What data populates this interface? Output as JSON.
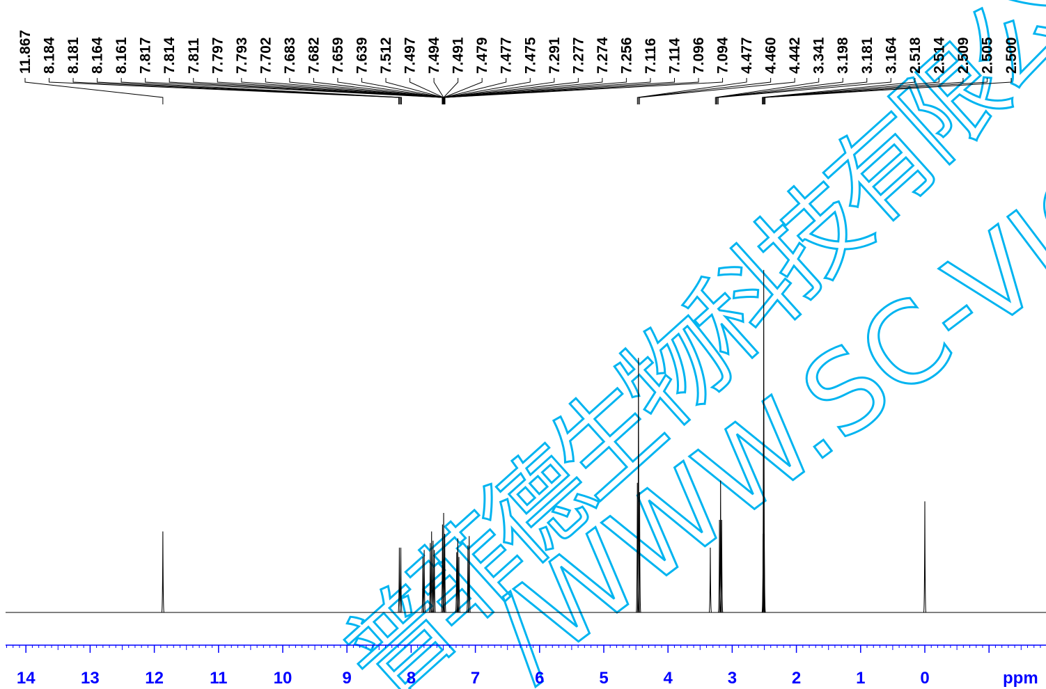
{
  "chart_data": {
    "type": "line",
    "title": "",
    "xlabel": "ppm",
    "ylabel": "",
    "x_reversed": true,
    "xlim": [
      14.3,
      -1.9
    ],
    "ylim": [
      0,
      1
    ],
    "grid": false,
    "ticks": [
      14,
      13,
      12,
      11,
      10,
      9,
      8,
      7,
      6,
      5,
      4,
      3,
      2,
      1,
      0
    ],
    "minor_tick_step": 0.1,
    "peak_labels": [
      "11.867",
      "8.184",
      "8.181",
      "8.164",
      "8.161",
      "7.817",
      "7.814",
      "7.811",
      "7.797",
      "7.793",
      "7.702",
      "7.683",
      "7.682",
      "7.659",
      "7.639",
      "7.512",
      "7.497",
      "7.494",
      "7.491",
      "7.479",
      "7.477",
      "7.475",
      "7.291",
      "7.277",
      "7.274",
      "7.256",
      "7.116",
      "7.114",
      "7.096",
      "7.094",
      "4.477",
      "4.460",
      "4.442",
      "3.341",
      "3.198",
      "3.181",
      "3.164",
      "2.518",
      "2.514",
      "2.509",
      "2.505",
      "2.500"
    ],
    "label_groups": [
      {
        "center": 11.867,
        "count": 1
      },
      {
        "center": 8.172,
        "count": 4
      },
      {
        "center": 7.495,
        "count": 25
      },
      {
        "center": 4.46,
        "count": 3
      },
      {
        "center": 3.24,
        "count": 4
      },
      {
        "center": 2.509,
        "count": 5
      }
    ],
    "peaks": [
      {
        "ppm": 11.867,
        "height": 0.175
      },
      {
        "ppm": 8.184,
        "height": 0.14
      },
      {
        "ppm": 8.161,
        "height": 0.14
      },
      {
        "ppm": 7.817,
        "height": 0.12
      },
      {
        "ppm": 7.797,
        "height": 0.135
      },
      {
        "ppm": 7.702,
        "height": 0.15
      },
      {
        "ppm": 7.682,
        "height": 0.175
      },
      {
        "ppm": 7.659,
        "height": 0.155
      },
      {
        "ppm": 7.639,
        "height": 0.135
      },
      {
        "ppm": 7.512,
        "height": 0.19
      },
      {
        "ppm": 7.494,
        "height": 0.215
      },
      {
        "ppm": 7.477,
        "height": 0.17
      },
      {
        "ppm": 7.291,
        "height": 0.13
      },
      {
        "ppm": 7.274,
        "height": 0.16
      },
      {
        "ppm": 7.256,
        "height": 0.12
      },
      {
        "ppm": 7.116,
        "height": 0.145
      },
      {
        "ppm": 7.096,
        "height": 0.165
      },
      {
        "ppm": 4.477,
        "height": 0.28
      },
      {
        "ppm": 4.46,
        "height": 0.55
      },
      {
        "ppm": 4.442,
        "height": 0.26
      },
      {
        "ppm": 3.341,
        "height": 0.14
      },
      {
        "ppm": 3.198,
        "height": 0.2
      },
      {
        "ppm": 3.181,
        "height": 0.285
      },
      {
        "ppm": 3.164,
        "height": 0.2
      },
      {
        "ppm": 2.518,
        "height": 0.17
      },
      {
        "ppm": 2.514,
        "height": 0.37
      },
      {
        "ppm": 2.509,
        "height": 0.74
      },
      {
        "ppm": 2.505,
        "height": 0.37
      },
      {
        "ppm": 2.5,
        "height": 0.17
      },
      {
        "ppm": 0.0,
        "height": 0.24
      }
    ]
  },
  "watermark": {
    "text_cn": "四川省维克奇生物科技有限公司",
    "text_url": "http://www.sc-victory.com",
    "visible_cn": "普菲德生物科技有限公",
    "visible_url": "/WWW.SC-VICTORY.",
    "color": "#00b4f0"
  },
  "colors": {
    "spectrum": "#000000",
    "axis": "#0000ff",
    "tick_label": "#0000ff",
    "peak_label": "#000000"
  }
}
